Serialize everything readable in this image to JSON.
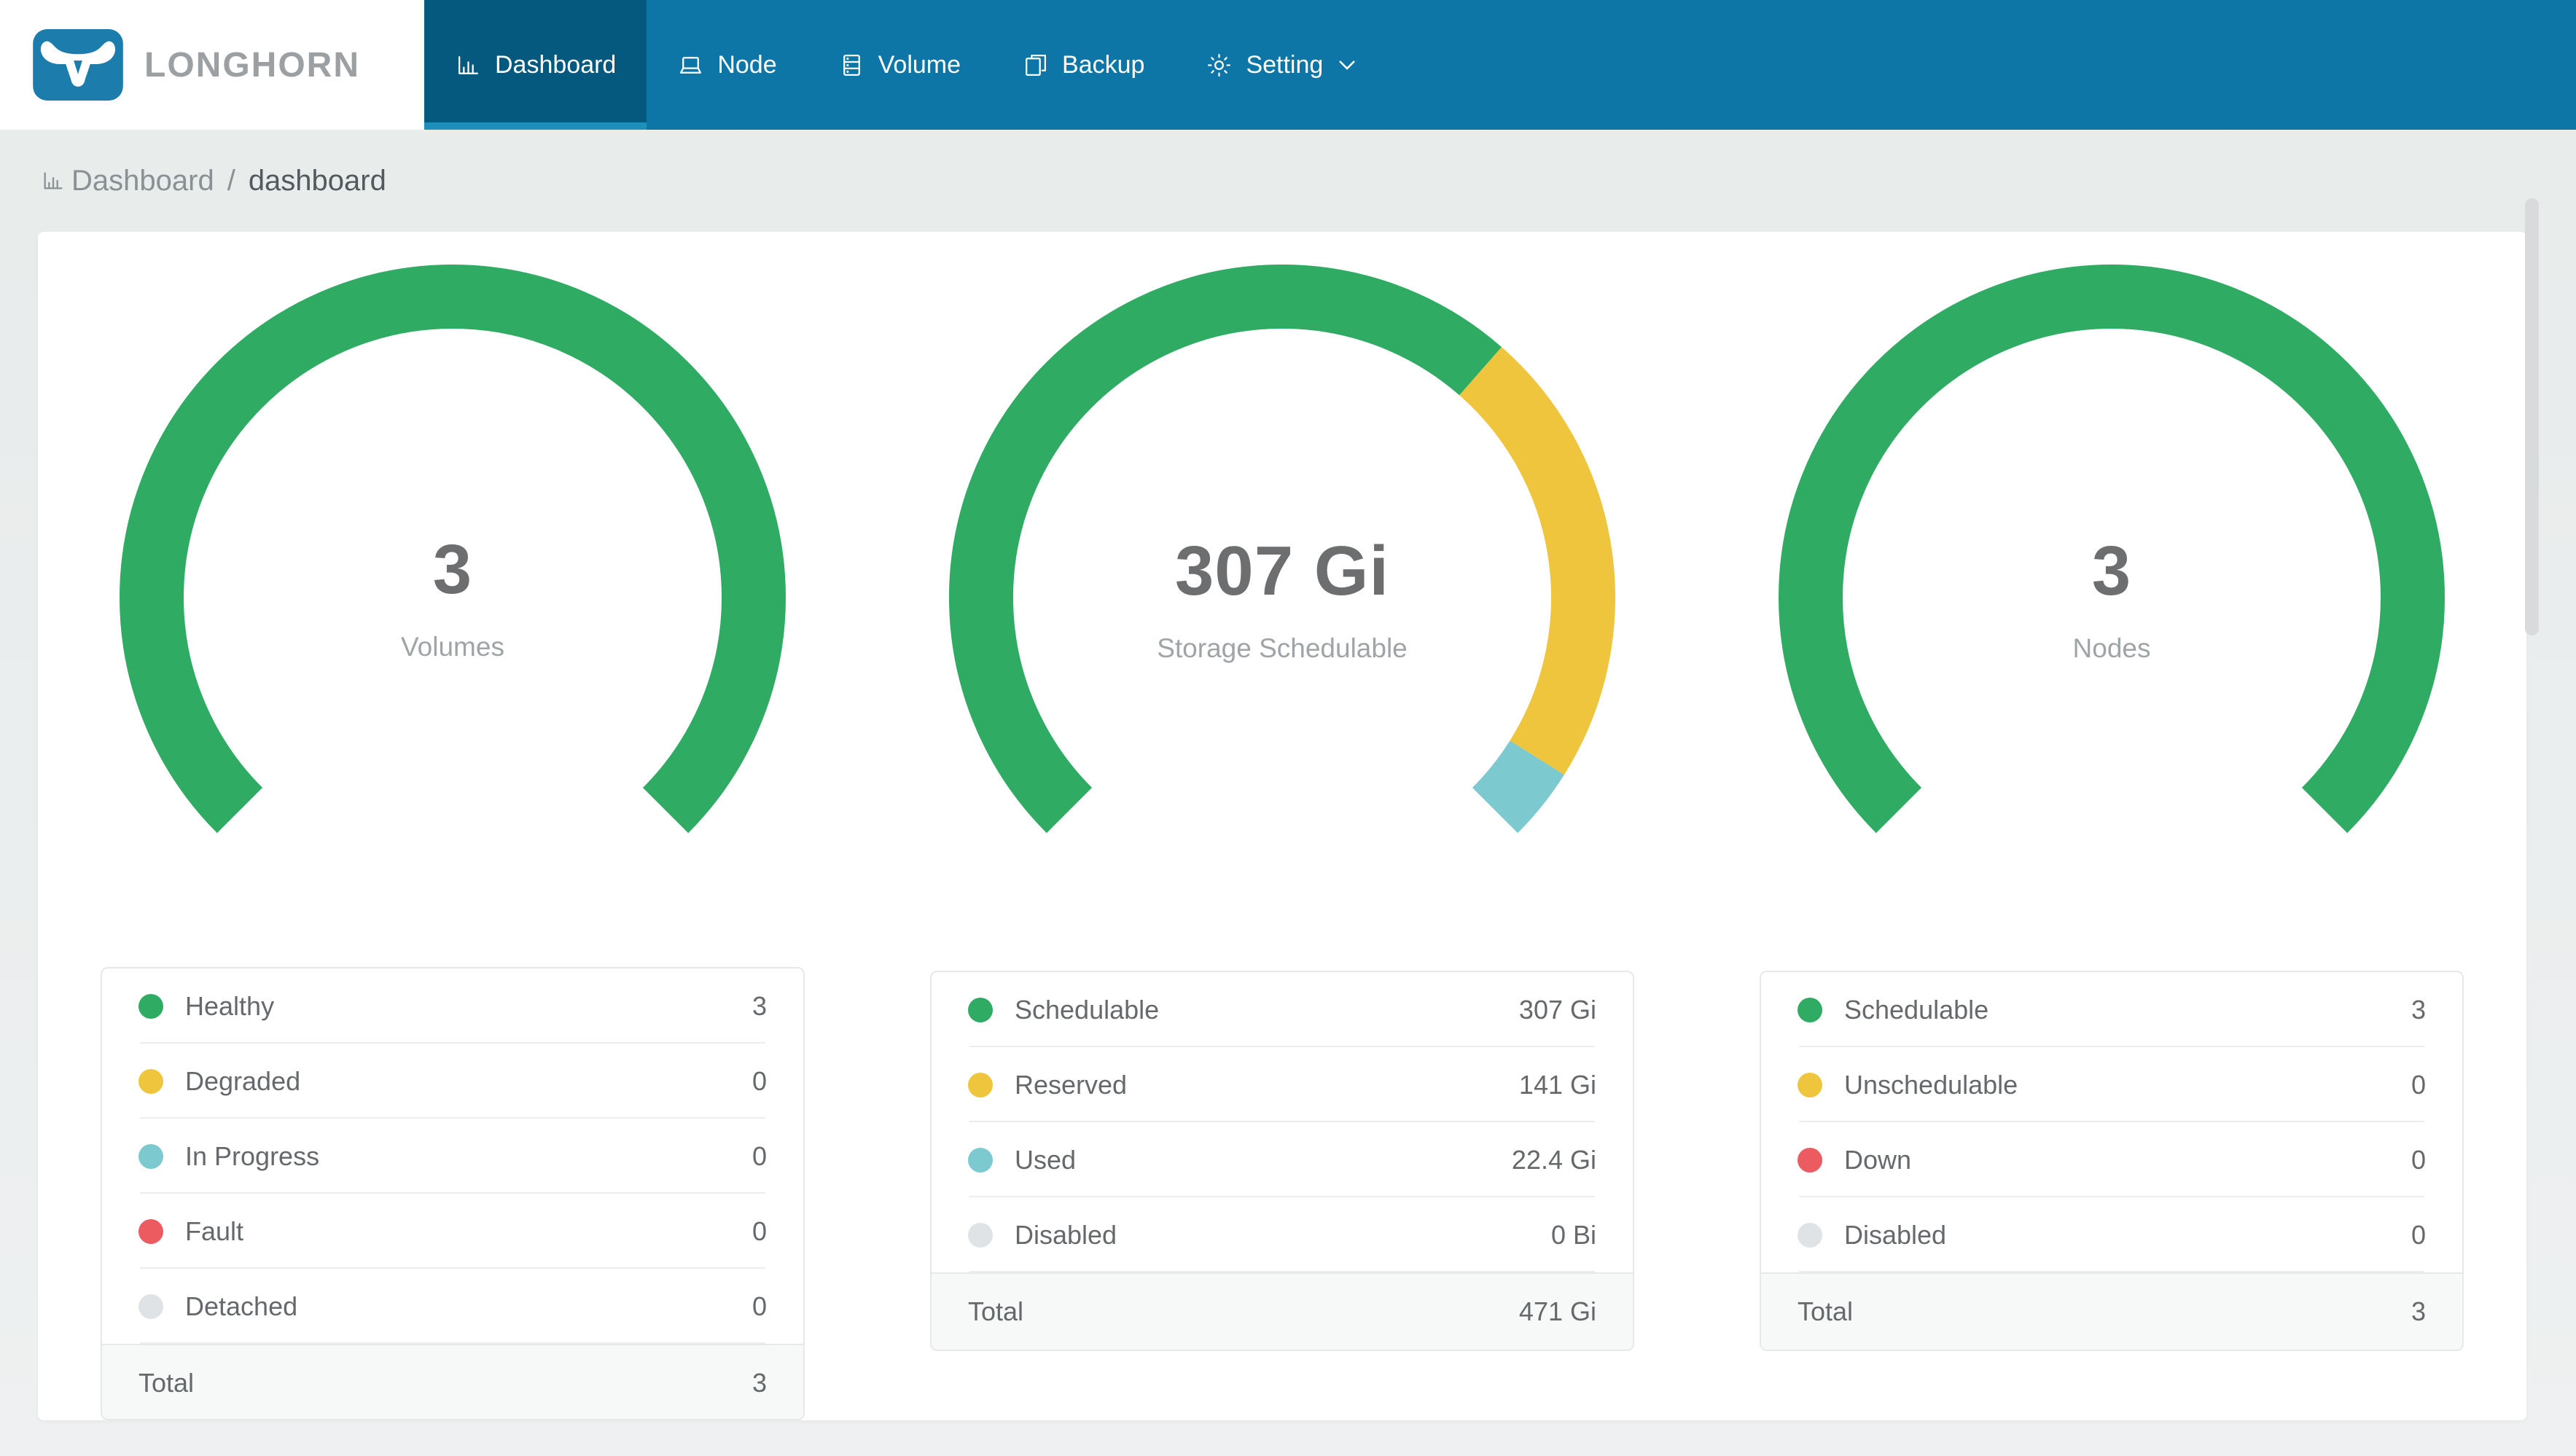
{
  "nav": {
    "brand": "LONGHORN",
    "items": [
      {
        "label": "Dashboard",
        "icon": "bar-chart-icon",
        "active": true
      },
      {
        "label": "Node",
        "icon": "laptop-icon",
        "active": false
      },
      {
        "label": "Volume",
        "icon": "database-icon",
        "active": false
      },
      {
        "label": "Backup",
        "icon": "copy-icon",
        "active": false
      },
      {
        "label": "Setting",
        "icon": "gear-icon",
        "active": false,
        "has_dropdown": true
      }
    ]
  },
  "breadcrumb": {
    "icon": "bar-chart-icon",
    "items": [
      "Dashboard",
      "dashboard"
    ],
    "separator": "/"
  },
  "colors": {
    "green": "#2fab63",
    "yellow": "#f0c53e",
    "teal": "#7ccacf",
    "red": "#ec5b60",
    "neutral": "#e0e3e6",
    "nav_bg": "#0e76a6",
    "nav_active_bg": "#05597f",
    "nav_active_underline": "#1e8fba",
    "logo_blue": "#1c7cab",
    "brand_text": "#9ca0a3",
    "page_bg": "#ebeeee",
    "card_bg": "#ffffff",
    "value_text": "#6c6e70",
    "muted_text": "#9fa4a6",
    "table_text": "#66696b",
    "table_border": "#e8e8e8",
    "total_row_bg": "#f7f8f8"
  },
  "chart_data": [
    {
      "type": "donut",
      "title": "Volumes",
      "arc": {
        "start_deg": 225,
        "sweep_deg": 270,
        "outer_radius": 457,
        "thickness": 88
      },
      "center": {
        "value": "3",
        "label": "Volumes"
      },
      "rows": [
        {
          "label": "Healthy",
          "amount": 3,
          "display": "3",
          "color": "#2fab63"
        },
        {
          "label": "Degraded",
          "amount": 0,
          "display": "0",
          "color": "#f0c53e"
        },
        {
          "label": "In Progress",
          "amount": 0,
          "display": "0",
          "color": "#7ccacf"
        },
        {
          "label": "Fault",
          "amount": 0,
          "display": "0",
          "color": "#ec5b60"
        },
        {
          "label": "Detached",
          "amount": 0,
          "display": "0",
          "color": "#e0e3e6"
        }
      ],
      "total": {
        "label": "Total",
        "display": "3"
      }
    },
    {
      "type": "donut",
      "title": "Storage Schedulable",
      "arc": {
        "start_deg": 225,
        "sweep_deg": 270,
        "outer_radius": 457,
        "thickness": 88
      },
      "center": {
        "value": "307 Gi",
        "label": "Storage Schedulable"
      },
      "rows": [
        {
          "label": "Schedulable",
          "amount": 307,
          "display": "307 Gi",
          "color": "#2fab63"
        },
        {
          "label": "Reserved",
          "amount": 141,
          "display": "141 Gi",
          "color": "#f0c53e"
        },
        {
          "label": "Used",
          "amount": 22.4,
          "display": "22.4 Gi",
          "color": "#7ccacf"
        },
        {
          "label": "Disabled",
          "amount": 0,
          "display": "0 Bi",
          "color": "#e0e3e6"
        }
      ],
      "total": {
        "label": "Total",
        "display": "471 Gi"
      }
    },
    {
      "type": "donut",
      "title": "Nodes",
      "arc": {
        "start_deg": 225,
        "sweep_deg": 270,
        "outer_radius": 457,
        "thickness": 88
      },
      "center": {
        "value": "3",
        "label": "Nodes"
      },
      "rows": [
        {
          "label": "Schedulable",
          "amount": 3,
          "display": "3",
          "color": "#2fab63"
        },
        {
          "label": "Unschedulable",
          "amount": 0,
          "display": "0",
          "color": "#f0c53e"
        },
        {
          "label": "Down",
          "amount": 0,
          "display": "0",
          "color": "#ec5b60"
        },
        {
          "label": "Disabled",
          "amount": 0,
          "display": "0",
          "color": "#e0e3e6"
        }
      ],
      "total": {
        "label": "Total",
        "display": "3"
      }
    }
  ]
}
